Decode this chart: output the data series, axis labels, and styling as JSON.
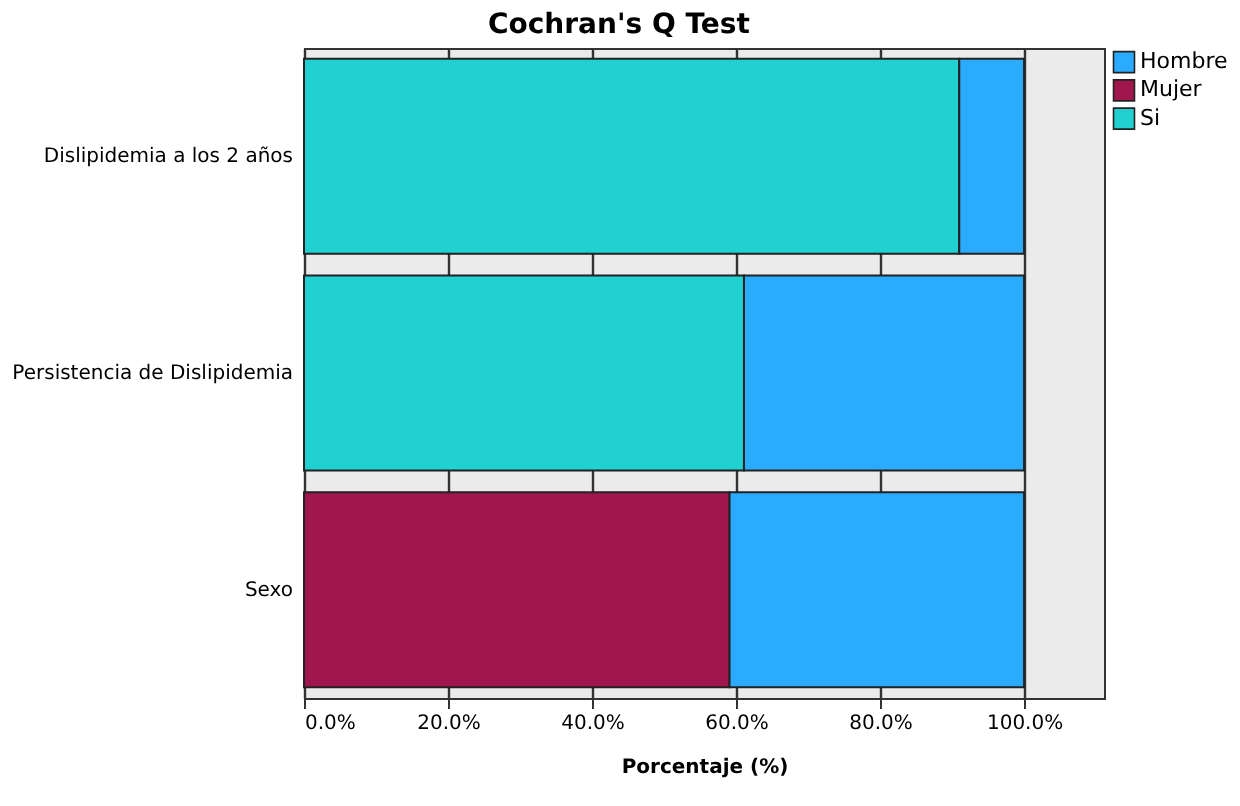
{
  "chart_data": {
    "type": "bar",
    "orientation": "horizontal",
    "stacked": true,
    "title": "Cochran's Q Test",
    "xlabel": "Porcentaje (%)",
    "categories": [
      "Dislipidemia a los 2 años",
      "Persistencia de Dislipidemia",
      "Sexo"
    ],
    "series": [
      {
        "name": "Si",
        "color": "#21d0d0",
        "values": [
          91.0,
          61.1,
          null
        ]
      },
      {
        "name": "Mujer",
        "color": "#a0174e",
        "values": [
          null,
          null,
          59.1
        ]
      },
      {
        "name": "Hombre",
        "color": "#2aabff",
        "values": [
          9.0,
          38.9,
          40.9
        ]
      }
    ],
    "xlim": [
      0,
      111.1
    ],
    "xticks": [
      {
        "value": 0,
        "label": "0.0%"
      },
      {
        "value": 20,
        "label": "20.0%"
      },
      {
        "value": 40,
        "label": "40.0%"
      },
      {
        "value": 60,
        "label": "60.0%"
      },
      {
        "value": 80,
        "label": "80.0%"
      },
      {
        "value": 100,
        "label": "100.0%"
      }
    ],
    "grid": "x",
    "legend": "top right"
  }
}
